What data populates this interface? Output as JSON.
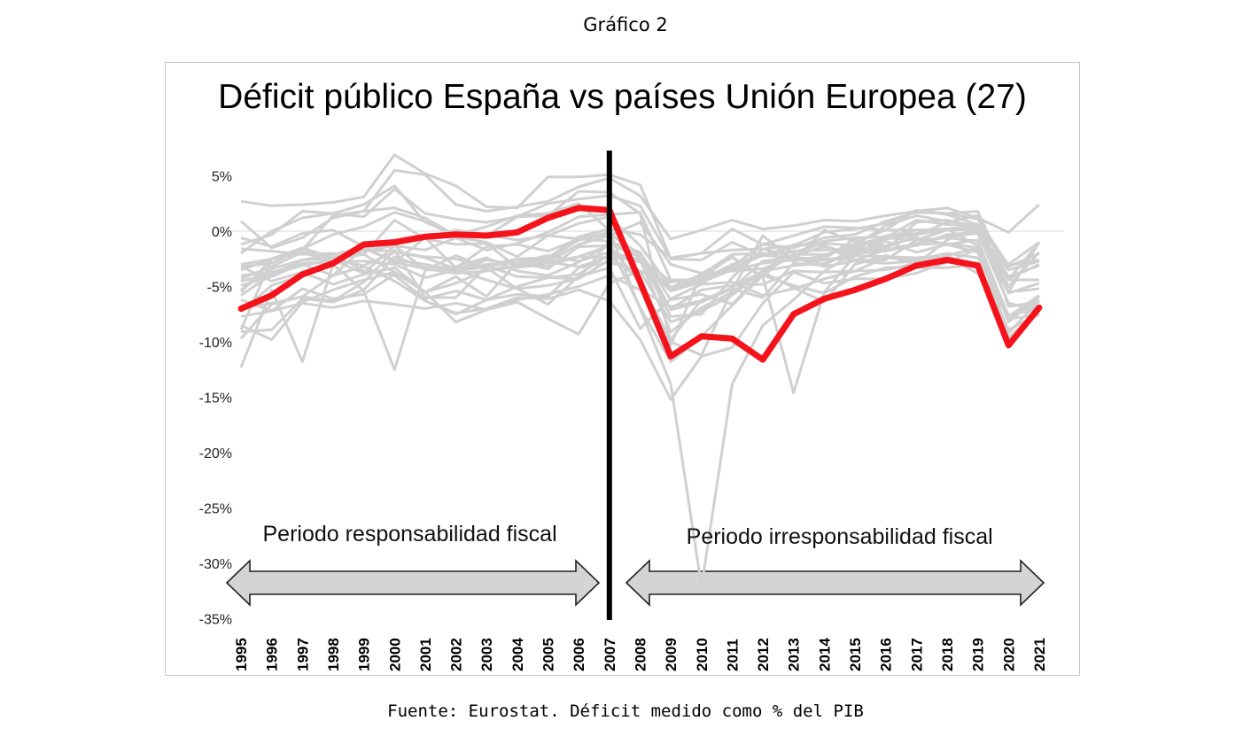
{
  "figure_label": "Gráfico 2",
  "source_note": "Fuente: Eurostat. Déficit medido como % del PIB",
  "chart_data": {
    "type": "line",
    "title": "Déficit público España vs países Unión Europea (27)",
    "xlabel": "",
    "ylabel": "",
    "ylim": [
      -35,
      7
    ],
    "yticks": [
      5,
      0,
      -5,
      -10,
      -15,
      -20,
      -25,
      -30,
      -35
    ],
    "ytick_labels": [
      "5%",
      "0%",
      "-5%",
      "-10%",
      "-15%",
      "-20%",
      "-25%",
      "-30%",
      "-35%"
    ],
    "x": [
      1995,
      1996,
      1997,
      1998,
      1999,
      2000,
      2001,
      2002,
      2003,
      2004,
      2005,
      2006,
      2007,
      2008,
      2009,
      2010,
      2011,
      2012,
      2013,
      2014,
      2015,
      2016,
      2017,
      2018,
      2019,
      2020,
      2021
    ],
    "x_labels": [
      "1995",
      "1996",
      "1997",
      "1998",
      "1999",
      "2000",
      "2001",
      "2002",
      "2003",
      "2004",
      "2005",
      "2006",
      "2007",
      "2008",
      "2009",
      "2010",
      "2011",
      "2012",
      "2013",
      "2014",
      "2015",
      "2016",
      "2017",
      "2018",
      "2019",
      "2020",
      "2021"
    ],
    "grid": false,
    "highlight_color": "#f5131b",
    "other_color": "#d0d0d0",
    "divider_x": 2007,
    "annotations": [
      {
        "text": "Periodo responsabilidad fiscal",
        "x": 2000.5
      },
      {
        "text": "Periodo irresponsabilidad fiscal",
        "x": 2014.5
      }
    ],
    "series": [
      {
        "values": [
          -7.0,
          -5.8,
          -3.9,
          -2.9,
          -1.2,
          -1.0,
          -0.5,
          -0.3,
          -0.4,
          -0.1,
          1.2,
          2.1,
          1.9,
          -4.6,
          -11.3,
          -9.5,
          -9.7,
          -11.6,
          -7.5,
          -6.1,
          -5.3,
          -4.3,
          -3.1,
          -2.6,
          -3.1,
          -10.3,
          -6.9
        ],
        "highlight": true
      },
      {
        "values": [
          2.7,
          2.3,
          2.4,
          2.6,
          3.1,
          6.9,
          5.2,
          4.1,
          2.2,
          2.1,
          4.9,
          4.9,
          5.1,
          4.2,
          -2.5,
          -2.6,
          -1.0,
          -2.2,
          -1.9,
          -1.1,
          -1.3,
          0.5,
          1.4,
          0.9,
          0.5,
          -3.0,
          -1.0
        ]
      },
      {
        "values": [
          0.9,
          -1.5,
          -0.6,
          1.2,
          1.8,
          5.5,
          5.1,
          2.4,
          1.8,
          2.2,
          2.7,
          4.0,
          4.8,
          3.2,
          -0.7,
          0.1,
          1.0,
          0.2,
          0.5,
          1.0,
          0.9,
          1.4,
          1.8,
          2.1,
          1.2,
          -0.1,
          2.4
        ]
      },
      {
        "values": [
          -1.2,
          -0.3,
          1.8,
          1.6,
          1.3,
          3.8,
          1.6,
          1.1,
          0.8,
          1.3,
          2.5,
          2.9,
          3.2,
          2.3,
          -2.5,
          -2.0,
          0.2,
          -1.2,
          -1.5,
          -0.6,
          -0.3,
          0.9,
          1.7,
          1.6,
          1.8,
          -4.4,
          -1.0
        ]
      },
      {
        "values": [
          -3.2,
          -2.9,
          -1.6,
          -0.3,
          0.4,
          1.7,
          0.9,
          -0.5,
          -1.0,
          -2.3,
          -0.4,
          0.7,
          1.3,
          -1.3,
          -5.1,
          -3.9,
          -2.1,
          -2.0,
          -2.7,
          -2.2,
          -1.2,
          -0.6,
          1.0,
          0.6,
          0.5,
          -3.2,
          -2.0
        ]
      },
      {
        "values": [
          -9.7,
          -6.6,
          -5.9,
          -4.0,
          -1.5,
          -1.1,
          -0.6,
          0.1,
          -0.3,
          -0.8,
          -0.4,
          -0.7,
          -0.1,
          -2.5,
          -4.5,
          -4.7,
          -3.2,
          -1.2,
          -0.4,
          0.4,
          0.3,
          0.1,
          0.1,
          0.2,
          0.5,
          -4.4,
          -4.4
        ]
      },
      {
        "values": [
          -3.0,
          -2.5,
          -1.6,
          -2.5,
          -2.1,
          1.0,
          -0.7,
          -1.2,
          -1.1,
          -3.3,
          -2.8,
          -1.2,
          -0.4,
          0.8,
          -3.0,
          -3.8,
          -3.6,
          -3.4,
          -2.3,
          -3.0,
          -1.8,
          -1.5,
          -0.4,
          0.8,
          1.4,
          -6.8,
          -6.4
        ]
      },
      {
        "values": [
          -5.3,
          -3.4,
          -2.6,
          -2.1,
          -1.5,
          -2.8,
          -3.4,
          -3.8,
          -3.6,
          -3.2,
          -3.1,
          -2.3,
          -2.4,
          -2.6,
          -7.0,
          -5.3,
          -4.9,
          -4.8,
          -3.6,
          -3.7,
          -3.6,
          -3.5,
          -2.9,
          -2.3,
          -3.0,
          -8.9,
          -7.5
        ]
      },
      {
        "values": [
          -9.1,
          -8.9,
          -6.1,
          -6.4,
          -5.3,
          -2.3,
          -3.3,
          -3.2,
          -2.4,
          -3.6,
          -4.0,
          -2.8,
          -1.2,
          -2.3,
          -5.3,
          -4.3,
          -3.5,
          -2.9,
          -2.6,
          -2.6,
          -2.2,
          -2.3,
          -2.4,
          -2.2,
          -1.5,
          -9.6,
          -7.2
        ]
      },
      {
        "values": [
          -12.3,
          -5.3,
          -11.8,
          -3.0,
          -5.4,
          -12.5,
          -3.5,
          -3.5,
          -2.6,
          -3.0,
          -2.8,
          -3.2,
          -2.3,
          -4.3,
          -10.3,
          -3.8,
          -2.4,
          -4.1,
          -14.6,
          -5.5,
          -2.2,
          -0.9,
          -1.9,
          -1.2,
          -0.8,
          -7.7,
          -5.9
        ]
      },
      {
        "values": [
          -6.2,
          -7.2,
          -5.2,
          -6.1,
          -5.7,
          -3.9,
          -6.3,
          -7.4,
          -7.0,
          -6.0,
          -6.1,
          -5.3,
          -6.3,
          -9.8,
          -15.2,
          -11.3,
          -10.5,
          -6.5,
          -3.7,
          -4.7,
          -4.3,
          -4.3,
          -3.8,
          -2.8,
          -1.6,
          -9.2,
          -6.3
        ]
      },
      {
        "values": [
          -8.9,
          -2.5,
          -1.7,
          1.4,
          1.8,
          2.1,
          1.2,
          -0.4,
          -0.4,
          1.3,
          1.4,
          3.6,
          3.5,
          1.6,
          -10.0,
          -11.2,
          -5.3,
          -0.4,
          -2.6,
          0.1,
          -1.0,
          0.1,
          1.9,
          1.5,
          0.6,
          -5.5,
          -1.0
        ]
      },
      {
        "values": [
          -2.0,
          0.0,
          1.2,
          1.6,
          2.4,
          4.1,
          0.8,
          -0.3,
          0.4,
          1.4,
          1.6,
          2.5,
          0.1,
          -7.0,
          -13.8,
          -32.1,
          -13.8,
          -8.5,
          -6.2,
          -3.6,
          -2.0,
          -0.7,
          -0.3,
          0.1,
          0.5,
          -5.0,
          -1.9
        ]
      },
      {
        "values": [
          -7.3,
          -4.9,
          -4.0,
          -2.6,
          -3.8,
          -1.3,
          -3.5,
          -2.2,
          -3.3,
          -5.2,
          -6.6,
          -4.1,
          -3.3,
          -8.8,
          -6.1,
          -4.8,
          -4.6,
          -5.8,
          -5.2,
          -4.3,
          -3.6,
          -2.4,
          -2.6,
          -2.0,
          -2.4,
          -7.6,
          -6.8
        ]
      },
      {
        "values": [
          -4.9,
          -4.1,
          -2.9,
          -2.8,
          -2.7,
          -3.0,
          -4.2,
          -3.5,
          -4.4,
          -5.2,
          -4.9,
          -4.3,
          -2.6,
          -1.9,
          -7.1,
          -6.4,
          -5.2,
          -2.7,
          -2.4,
          -3.2,
          -2.7,
          -2.9,
          -2.7,
          -2.4,
          -3.8,
          -7.6,
          -7.0
        ]
      },
      {
        "values": [
          -4.0,
          -3.7,
          -3.0,
          -4.0,
          -3.2,
          -4.5,
          -6.3,
          -7.5,
          -6.2,
          -5.7,
          -5.9,
          -3.3,
          -2.8,
          -3.6,
          -8.2,
          -7.2,
          -5.8,
          -3.6,
          -2.1,
          -2.1,
          -1.5,
          -1.7,
          -1.1,
          -0.5,
          -0.2,
          -6.5,
          -7.2
        ]
      },
      {
        "values": [
          -4.3,
          -3.2,
          -1.9,
          -2.4,
          -1.7,
          -1.8,
          -2.4,
          -3.4,
          -3.0,
          -2.8,
          -3.4,
          -1.4,
          -1.3,
          -4.6,
          -9.8,
          -6.2,
          -5.2,
          -6.0,
          -2.9,
          -3.1,
          -1.5,
          -0.6,
          -0.8,
          0.1,
          0.2,
          -4.3,
          -3.0
        ]
      },
      {
        "values": [
          -7.0,
          -6.5,
          -5.9,
          -6.3,
          -4.6,
          -1.7,
          -6.0,
          -6.0,
          -3.1,
          -4.1,
          -4.2,
          -3.9,
          -2.1,
          -2.8,
          -5.4,
          -4.6,
          -3.5,
          -2.1,
          -1.8,
          -1.7,
          -1.6,
          -1.3,
          -0.6,
          -1.2,
          -1.9,
          -7.7,
          -5.8
        ]
      },
      {
        "values": [
          -5.5,
          -2.5,
          -2.0,
          -2.5,
          -2.1,
          -3.7,
          -5.5,
          -8.2,
          -7.1,
          -6.4,
          -7.9,
          -9.3,
          -4.7,
          -3.6,
          -4.6,
          -4.2,
          -2.3,
          -4.2,
          -1.2,
          -1.3,
          -2.2,
          -0.4,
          -0.2,
          0.2,
          -1.3,
          -8.2,
          -5.9
        ]
      },
      {
        "values": [
          -3.2,
          -4.5,
          -3.7,
          -4.8,
          -3.9,
          -3.3,
          -5.5,
          -4.1,
          -5.9,
          -2.8,
          -2.2,
          -2.7,
          -1.9,
          -2.6,
          -9.1,
          -6.9,
          -5.5,
          -3.7,
          -2.2,
          -1.4,
          -2.6,
          -2.6,
          -0.8,
          -0.6,
          -0.9,
          -8.0,
          -6.2
        ]
      },
      {
        "values": [
          -4.5,
          -3.9,
          -2.6,
          -2.5,
          -1.8,
          -1.3,
          -1.7,
          -0.6,
          -1.7,
          -1.1,
          -0.1,
          1.3,
          1.5,
          1.7,
          -4.4,
          -4.4,
          -3.0,
          -2.1,
          -1.4,
          -0.9,
          -0.6,
          -0.5,
          0.1,
          0.1,
          0.2,
          -4.1,
          -3.1
        ]
      },
      {
        "values": [
          -0.6,
          -1.4,
          -0.2,
          0.1,
          -1.4,
          -2.8,
          -0.6,
          -3.3,
          -1.4,
          -1.2,
          -1.8,
          -0.7,
          -0.9,
          -2.4,
          -7.7,
          -7.5,
          -4.2,
          -1.6,
          -2.4,
          -2.5,
          -0.7,
          -1.7,
          0.8,
          1.0,
          0.2,
          -5.6,
          -4.7
        ]
      },
      {
        "values": [
          -5.8,
          -3.9,
          -3.1,
          -2.6,
          -3.1,
          -1.9,
          -2.3,
          -2.5,
          -3.1,
          -2.5,
          -2.4,
          -0.5,
          0.2,
          -0.3,
          -2.4,
          -2.0,
          -1.7,
          -1.6,
          -1.3,
          -0.1,
          0.2,
          0.7,
          1.8,
          1.6,
          1.1,
          -3.1,
          -2.6
        ]
      },
      {
        "values": [
          -8.5,
          -9.8,
          -6.4,
          -5.3,
          -4.4,
          -3.7,
          -5.5,
          -4.7,
          -3.5,
          -3.1,
          -2.8,
          -2.3,
          -1.3,
          -6.9,
          -11.8,
          -9.5,
          -6.7,
          -4.0,
          -4.9,
          -5.6,
          -4.1,
          -3.3,
          -3.3,
          -3.3,
          -3.0,
          -9.6,
          -7.4
        ]
      },
      {
        "values": [
          -7.7,
          -7.2,
          -6.5,
          -6.9,
          -6.3,
          -6.6,
          -7.0,
          -6.5,
          -7.1,
          -6.2,
          -5.7,
          -5.0,
          -4.0,
          -5.3,
          -6.8,
          -6.3,
          -5.1,
          -3.6,
          -3.1,
          -2.9,
          -2.0,
          -1.8,
          -1.2,
          -1.1,
          -1.5,
          -7.9,
          -7.6
        ]
      },
      {
        "values": [
          -1.6,
          -1.8,
          -2.1,
          -2.0,
          -3.6,
          -4.0,
          -6.1,
          -5.4,
          -6.2,
          -5.0,
          -4.2,
          -4.3,
          -0.9,
          -1.9,
          -6.2,
          -5.7,
          -6.6,
          -3.7,
          -5.1,
          -6.4,
          -3.0,
          -2.2,
          -3.0,
          -0.8,
          0.3,
          -5.5,
          -5.2
        ]
      },
      {
        "values": [
          -3.5,
          -2.5,
          -1.5,
          -2.4,
          -1.6,
          -2.6,
          -3.0,
          -3.6,
          -3.2,
          -2.8,
          -2.6,
          -0.8,
          -0.2,
          -2.1,
          -5.4,
          -4.2,
          -3.3,
          -2.2,
          -2.4,
          -2.5,
          -2.6,
          -1.7,
          -1.3,
          -0.3,
          -0.1,
          -3.5,
          -2.7
        ]
      }
    ]
  }
}
